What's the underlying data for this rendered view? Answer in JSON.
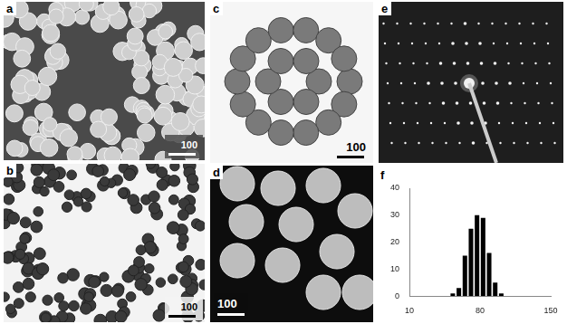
{
  "panels": [
    {
      "label": "a",
      "scale_bar": "100"
    },
    {
      "label": "b",
      "scale_bar": "100"
    },
    {
      "label": "c",
      "scale_bar": "100"
    },
    {
      "label": "d",
      "scale_bar": "100"
    },
    {
      "label": "e"
    },
    {
      "label": "f"
    }
  ],
  "chart_data": {
    "type": "histogram",
    "bins": [
      50,
      56,
      62,
      68,
      74,
      80,
      86,
      92,
      98,
      104
    ],
    "values": [
      1,
      3,
      15,
      25,
      30,
      29,
      16,
      5,
      1
    ],
    "color": "#000000",
    "xlim": [
      10,
      150
    ],
    "xticks": [
      10,
      80,
      150
    ],
    "ylim": [
      0,
      40
    ],
    "yticks": [
      0,
      10,
      20,
      30,
      40
    ],
    "grid": false
  }
}
